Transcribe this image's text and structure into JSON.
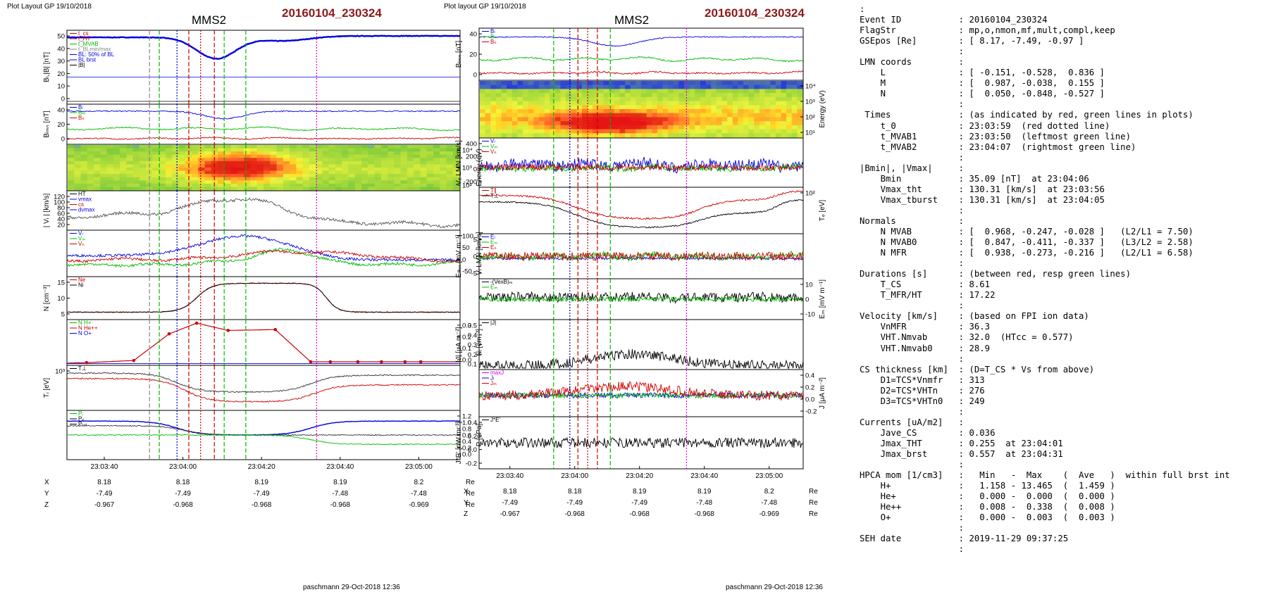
{
  "figure": {
    "left_title": "Plot Layout GP 19/10/2018",
    "right_title": "Plot layout GP 19/10/2018",
    "spacecraft": "MMS2",
    "event": "20160104_230324",
    "footer": "paschmann 29-Oct-2018 12:36",
    "colors": {
      "red": "#cc0000",
      "green": "#00bb00",
      "blue": "#0000dd",
      "magenta": "#dd00dd",
      "event": "#8b1a1a"
    }
  },
  "ephemeris": {
    "labels": [
      "X",
      "Y",
      "Z"
    ],
    "unit": "Re",
    "rows": [
      [
        "8.18",
        "8.18",
        "8.19",
        "8.19",
        "8.2"
      ],
      [
        "-7.49",
        "-7.49",
        "-7.49",
        "-7.48",
        "-7.48"
      ],
      [
        "-0.967",
        "-0.968",
        "-0.968",
        "-0.968",
        "-0.969"
      ]
    ]
  },
  "chart_data": [
    {
      "type": "line",
      "panel": "left",
      "xticks": [
        "23:03:40",
        "23:04:00",
        "23:04:20",
        "23:04:40",
        "23:05:00"
      ],
      "subplots": [
        {
          "id": "B",
          "ylabel": "Bₗ,|B| [nT]",
          "yticks": [
            "50",
            "40",
            "30",
            "20",
            "10",
            "0"
          ],
          "legend": [
            "t_cs",
            "t_HT",
            "t_MVAB",
            "t_BLmin/max",
            "BL: 50% of BL",
            "BL brst",
            "|B|"
          ]
        },
        {
          "id": "BLMN",
          "ylabel": "Bₗₘₙ [nT]",
          "yticks": [
            "40",
            "20",
            "0"
          ],
          "legend": [
            "Bₗ",
            "Bₘ",
            "Bₙ"
          ]
        },
        {
          "id": "ionspec",
          "type": "heatmap",
          "ylabel": "Energy (eV)",
          "yticks": [
            "10⁴",
            "10³",
            "10²"
          ]
        },
        {
          "id": "Vi",
          "ylabel": "| Vᵢ | [km/s]",
          "yticks": [
            "120",
            "100",
            "80",
            "60",
            "40",
            "20"
          ],
          "legend": [
            "HT",
            "vmax",
            "cs",
            "dvmax"
          ]
        },
        {
          "id": "ViLMN",
          "ylabel": "Vᵢ LMN [km/s]",
          "yticks": [
            "100",
            "50",
            "0",
            "-50"
          ],
          "legend": [
            "Vₗ",
            "Vₘ",
            "Vₙ"
          ]
        },
        {
          "id": "N",
          "ylabel": "N [cm⁻³]",
          "yticks": [
            "15",
            "10",
            "5"
          ],
          "legend": [
            "Ne",
            "Ni"
          ]
        },
        {
          "id": "Ni",
          "ylabel": "Nᵢ [cm⁻³]",
          "yticks": [
            "0.3",
            "0.2",
            "0.1",
            "0.0"
          ],
          "legend": [
            "N  H+",
            "N  He++",
            "N  O+"
          ]
        },
        {
          "id": "Ti",
          "ylabel": "Tᵢ [eV]",
          "yticks": [
            "10³"
          ],
          "legend": [
            "T⊥"
          ]
        },
        {
          "id": "P",
          "ylabel": "P [nPa]",
          "yticks": [
            "1.2",
            "1.0",
            "0.8",
            "0.6",
            "0.4",
            "0.2",
            "0.0"
          ],
          "legend": [
            "Pᵢ",
            "Pₑ",
            "Pₜₒₜ"
          ]
        }
      ]
    },
    {
      "type": "line",
      "panel": "right",
      "xticks": [
        "23:03:40",
        "23:04:00",
        "23:04:20",
        "23:04:40",
        "23:05:00"
      ],
      "subplots": [
        {
          "id": "BLMN",
          "ylabel": "Bₗₘₙ [nT]",
          "yticks": [
            "40",
            "20",
            "0"
          ],
          "legend": [
            "Bₗ",
            "Bₘ",
            "Bₙ"
          ]
        },
        {
          "id": "espec",
          "type": "heatmap",
          "ylabel": "Energy (eV)",
          "yticks": [
            "10⁴",
            "10³",
            "10²",
            "10¹"
          ]
        },
        {
          "id": "Ve",
          "ylabel": "Vₑ LMN [km/s]",
          "yticks": [
            "400",
            "200",
            "0",
            "-200"
          ],
          "legend": [
            "Vₗ",
            "Vₘ",
            "Vₙ"
          ]
        },
        {
          "id": "Te",
          "ylabel": "Tₑ [eV]",
          "yticks": [
            "10²"
          ],
          "legend": [
            "T∥",
            "T⊥"
          ]
        },
        {
          "id": "E",
          "ylabel": "Eₗₘₙ [mV m⁻¹]",
          "yticks": [
            "5",
            "0",
            "-5"
          ],
          "legend": [
            "Eₗ",
            "Eₘ",
            "Eₙ"
          ]
        },
        {
          "id": "EM",
          "ylabel": "Eₘ [mV m⁻¹]",
          "yticks": [
            "10",
            "0",
            "-10"
          ],
          "legend": [
            "-(VexB)ₘ",
            "Eₘ"
          ]
        },
        {
          "id": "J",
          "ylabel": "|J| [μA m⁻²]",
          "yticks": [
            "0.5",
            "0.4",
            "0.3",
            "0.2",
            "0.1"
          ],
          "legend": [
            "|J|"
          ]
        },
        {
          "id": "JLMN",
          "ylabel": "J [μA m⁻²]",
          "yticks": [
            "0.4",
            "0.2",
            "0.0",
            "-0.2"
          ],
          "legend": [
            "maxJ",
            "Jₗ",
            "Jₘ"
          ]
        },
        {
          "id": "JE",
          "ylabel": "J*E' [nW m⁻³]",
          "yticks": [
            "0.4",
            "0.2",
            "0.0",
            "-0.2"
          ],
          "legend": [
            "J*E'"
          ]
        }
      ]
    }
  ],
  "info_lines": [
    ":",
    "Event ID           : 20160104_230324",
    "FlagStr            : mp,o,nmon,mf,mult,compl,keep",
    "GSEpos [Re]        : [ 8.17, -7.49, -0.97 ]",
    "                   :",
    "LMN coords         :",
    "    L              : [ -0.151, -0.528,  0.836 ]",
    "    M              : [  0.987, -0.038,  0.155 ]",
    "    N              : [  0.050, -0.848, -0.527 ]",
    "                   :",
    " Times             : (as indicated by red, green lines in plots)",
    "    t_0            : 23:03:59  (red dotted line)",
    "    t_MVAB1        : 23:03:50  (leftmost green line)",
    "    t_MVAB2        : 23:04:07  (rightmost green line)",
    "                   :",
    "|Bmin|, |Vmax|     :",
    "    Bmin           : 35.09 [nT]  at 23:04:06",
    "    Vmax_tht       : 130.31 [km/s]  at 23:03:56",
    "    Vmax_tburst    : 130.31 [km/s]  at 23:04:05",
    "                   :",
    "Normals            :",
    "    N MVAB         : [  0.968, -0.247, -0.028 ]   (L2/L1 = 7.50)",
    "    N MVAB0        : [  0.847, -0.411, -0.337 ]   (L3/L2 = 2.58)",
    "    N MFR          : [  0.938, -0.273, -0.216 ]   (L2/L1 = 6.58)",
    "                   :",
    "Durations [s]      : (between red, resp green lines)",
    "    T_CS           : 8.61",
    "    T_MFR/HT       : 17.22",
    "                   :",
    "Velocity [km/s]    : (based on FPI ion data)",
    "    VnMFR          : 36.3",
    "    VHT.Nmvab      : 32.0  (HTcc = 0.577)",
    "    VHT.Nmvab0     : 28.9",
    "                   :",
    "CS thickness [km]  : (D=T_CS * Vs from above)",
    "    D1=TCS*Vnmfr   : 313",
    "    D2=TCS*VHTn    : 276",
    "    D3=TCS*VHTn0   : 249",
    "                   :",
    "Currents [uA/m2]   :",
    "    Jave_CS        : 0.036",
    "    Jmax_THT       : 0.255  at 23:04:01",
    "    Jmax_brst      : 0.557  at 23:04:31",
    "                   :",
    "HPCA mom [1/cm3]   :   Min   -  Max    (  Ave   )  within full brst int",
    "    H+             :   1.158 - 13.465  (  1.459 )",
    "    He+            :   0.000 -  0.000  (  0.000 )",
    "    He++           :   0.008 -  0.338  (  0.008 )",
    "    O+             :   0.000 -  0.003  (  0.003 )",
    "                   :",
    "SEH date           : 2019-11-29 09:37:25",
    "                   :"
  ]
}
